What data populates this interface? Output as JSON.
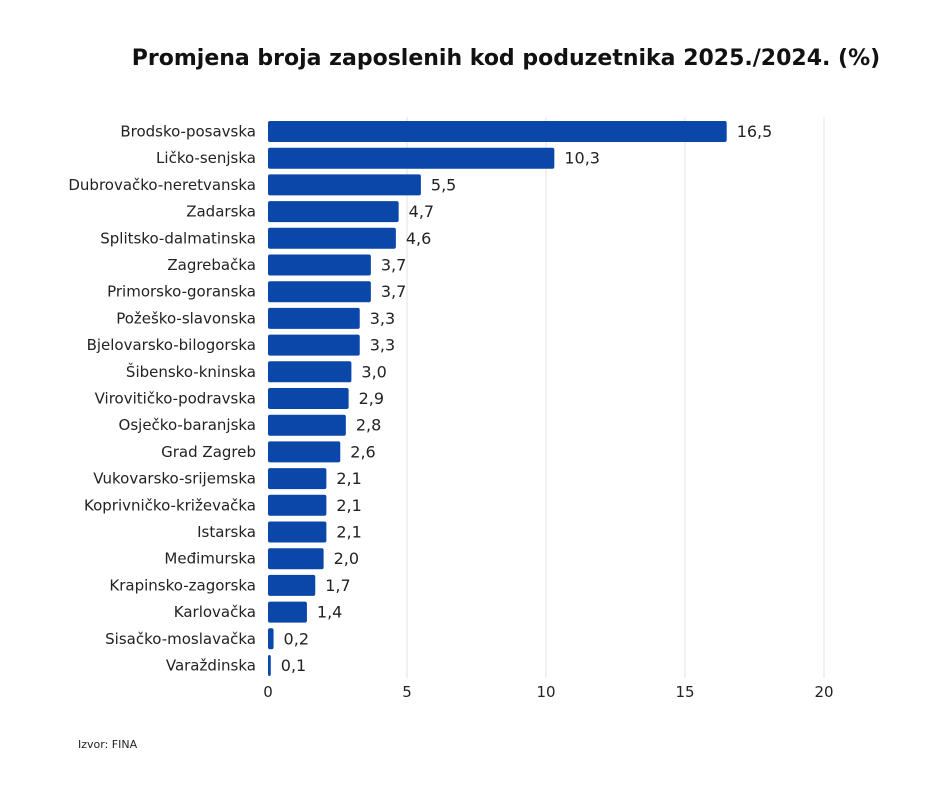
{
  "chart_data": {
    "type": "bar",
    "orientation": "horizontal",
    "title": "Promjena broja zaposlenih kod poduzetnika 2025./2024. (%)",
    "categories": [
      "Brodsko-posavska",
      "Ličko-senjska",
      "Dubrovačko-neretvanska",
      "Zadarska",
      "Splitsko-dalmatinska",
      "Zagrebačka",
      "Primorsko-goranska",
      "Požeško-slavonska",
      "Bjelovarsko-bilogorska",
      "Šibensko-kninska",
      "Virovitičko-podravska",
      "Osječko-baranjska",
      "Grad Zagreb",
      "Vukovarsko-srijemska",
      "Koprivničko-križevačka",
      "Istarska",
      "Međimurska",
      "Krapinsko-zagorska",
      "Karlovačka",
      "Sisačko-moslavačka",
      "Varaždinska"
    ],
    "values": [
      16.5,
      10.3,
      5.5,
      4.7,
      4.6,
      3.7,
      3.7,
      3.3,
      3.3,
      3.0,
      2.9,
      2.8,
      2.6,
      2.1,
      2.1,
      2.1,
      2.0,
      1.7,
      1.4,
      0.2,
      0.1
    ],
    "value_labels": [
      "16,5",
      "10,3",
      "5,5",
      "4,7",
      "4,6",
      "3,7",
      "3,7",
      "3,3",
      "3,3",
      "3,0",
      "2,9",
      "2,8",
      "2,6",
      "2,1",
      "2,1",
      "2,1",
      "2,0",
      "1,7",
      "1,4",
      "0,2",
      "0,1"
    ],
    "xlim": [
      0,
      20
    ],
    "xticks": [
      0,
      5,
      10,
      15,
      20
    ],
    "xtick_labels": [
      "0",
      "5",
      "10",
      "15",
      "20"
    ],
    "grid": "vertical",
    "bar_color": "#0a47a9",
    "source": "Izvor: FINA"
  }
}
